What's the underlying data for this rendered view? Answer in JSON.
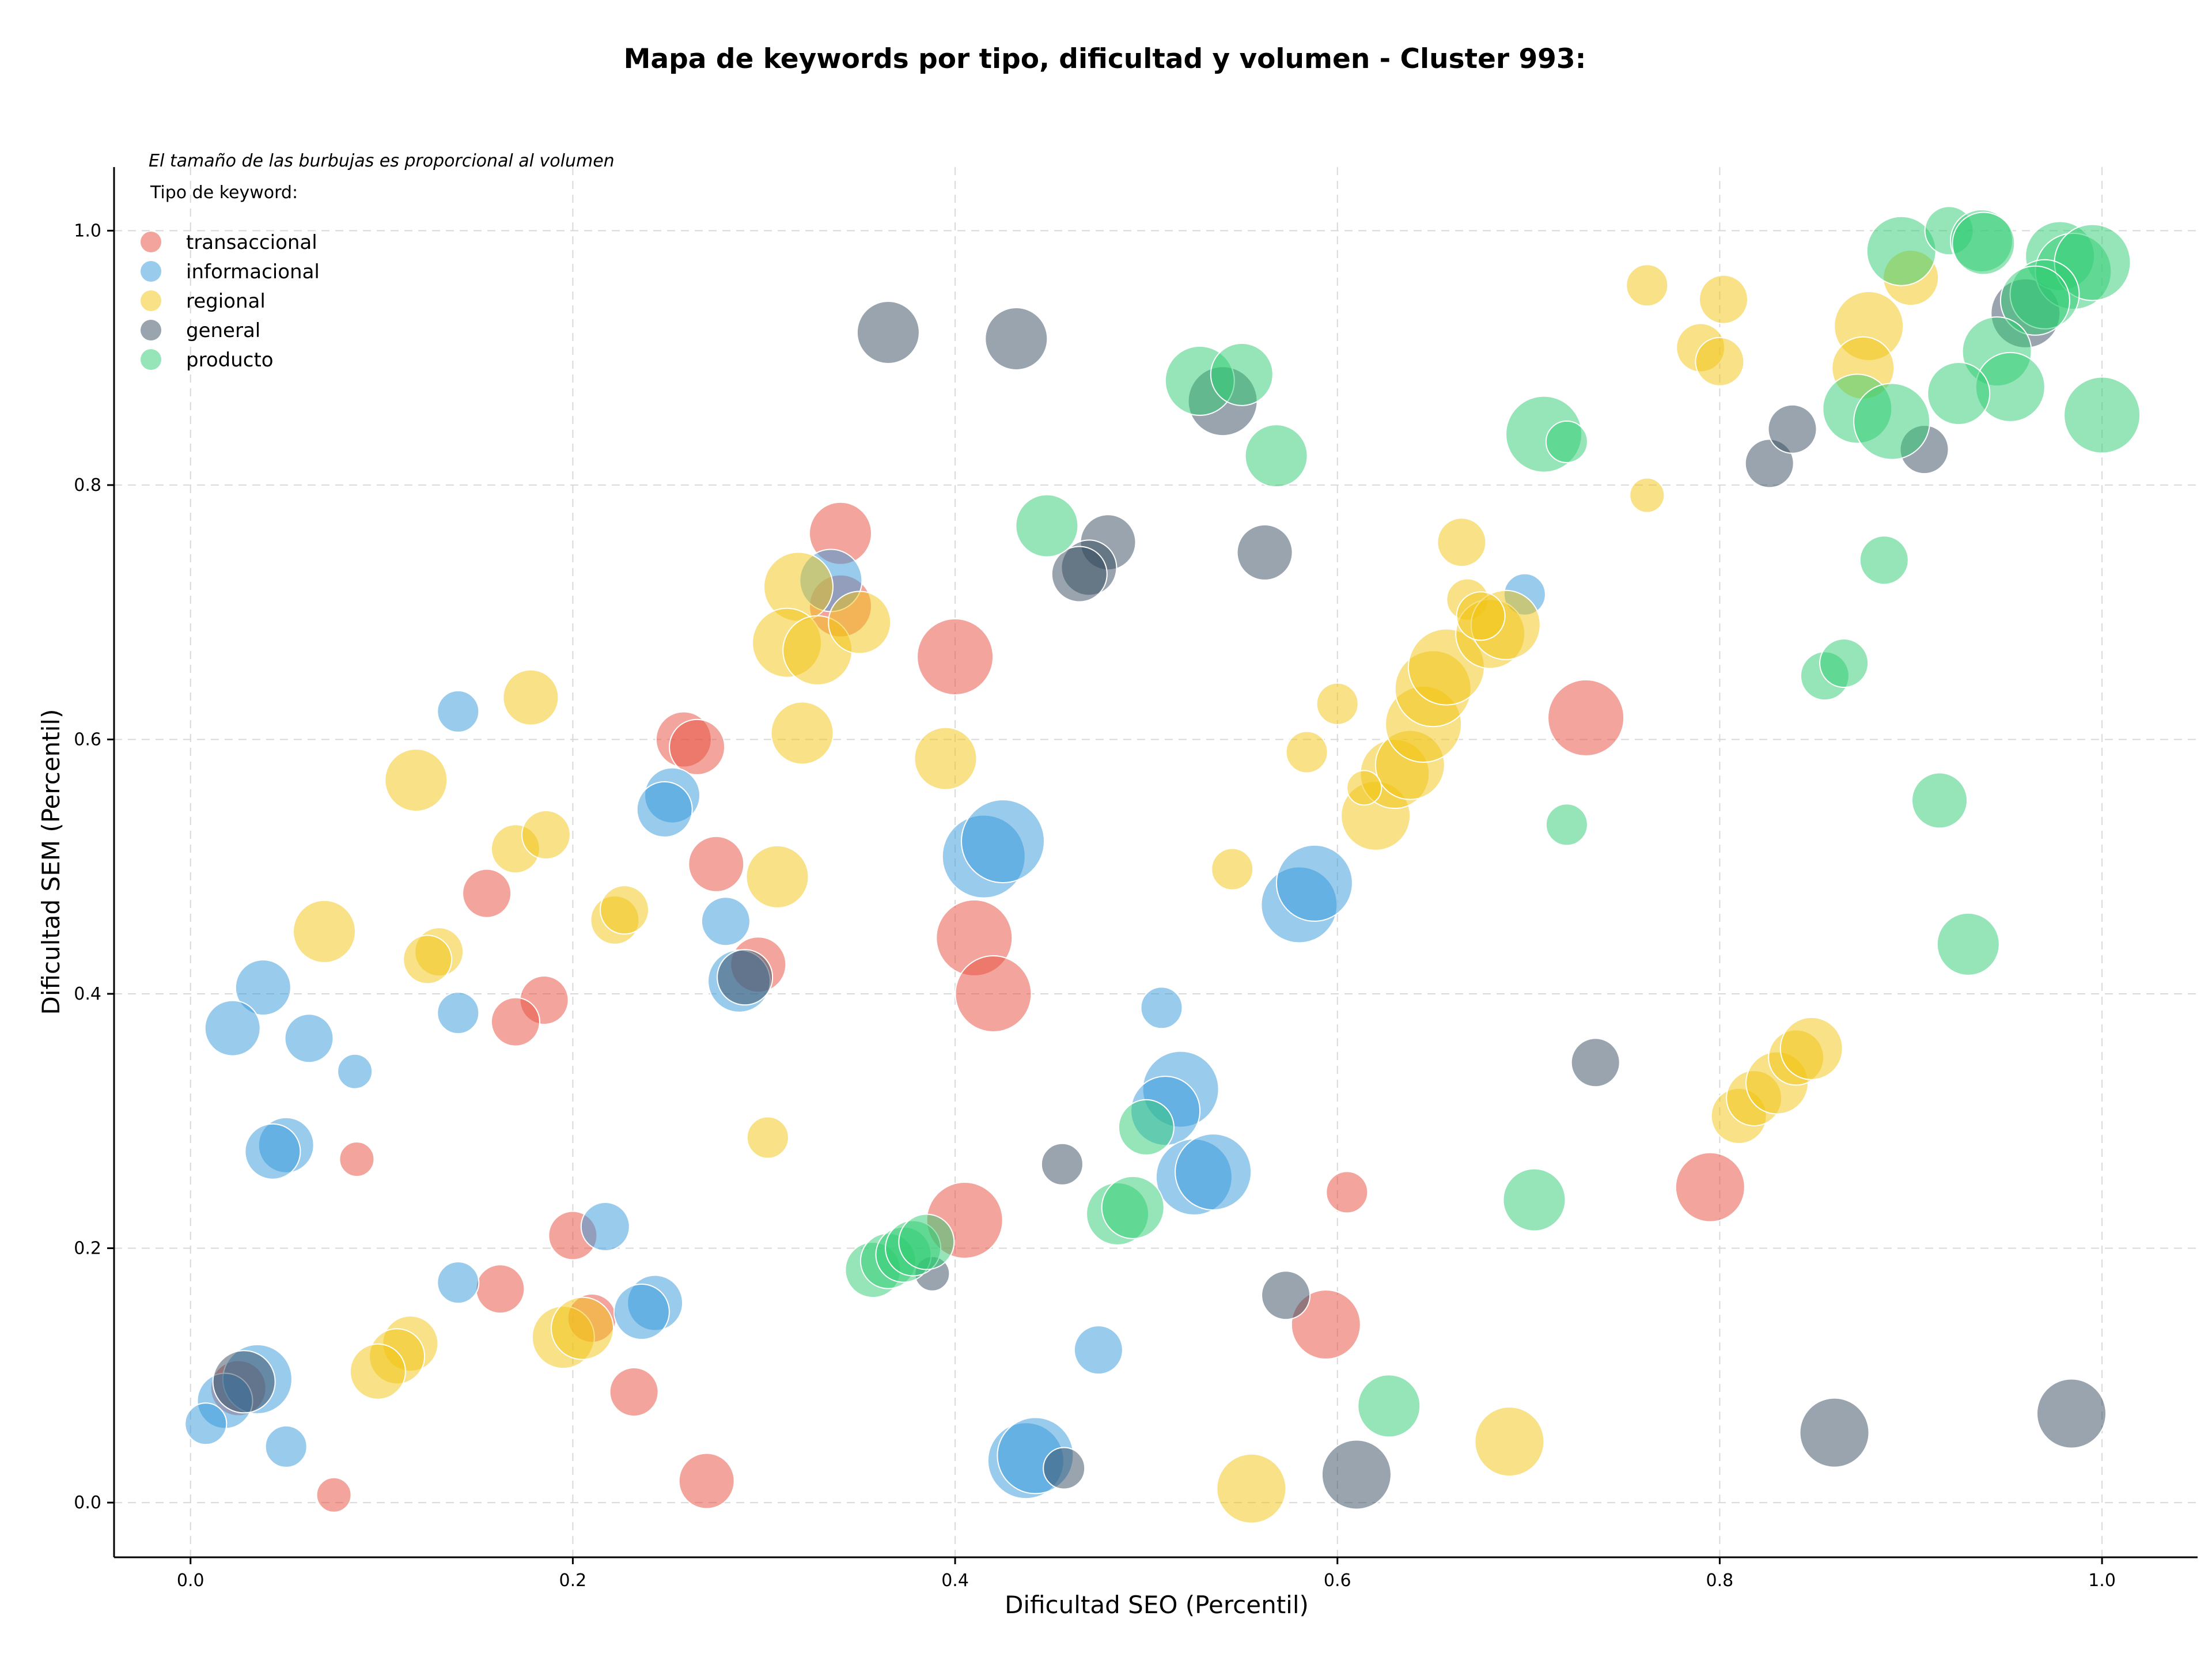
{
  "chart_data": {
    "type": "scatter",
    "title": "Mapa de keywords por tipo, dificultad y volumen - Cluster 993:",
    "xlabel": "Dificultad SEO (Percentil)",
    "ylabel": "Dificultad SEM (Percentil)",
    "xlim": [
      -0.04,
      1.05
    ],
    "ylim": [
      -0.043,
      1.05
    ],
    "xticks": [
      "0.0",
      "0.2",
      "0.4",
      "0.6",
      "0.8",
      "1.0"
    ],
    "yticks": [
      "0.0",
      "0.2",
      "0.4",
      "0.6",
      "0.8",
      "1.0"
    ],
    "grid": true,
    "annotation": "El tamaño de las burbujas es proporcional al volumen",
    "legend": {
      "title": "Tipo de keyword:",
      "placement": "top-left"
    },
    "series": [
      {
        "name": "transaccional",
        "color": "#e74c3c",
        "points": [
          [
            0.34,
            0.762,
            3
          ],
          [
            0.4,
            0.665,
            4
          ],
          [
            0.258,
            0.6,
            2.5
          ],
          [
            0.265,
            0.594,
            2.5
          ],
          [
            0.275,
            0.502,
            2.5
          ],
          [
            0.155,
            0.479,
            2
          ],
          [
            0.185,
            0.395,
            2
          ],
          [
            0.17,
            0.378,
            2
          ],
          [
            0.41,
            0.444,
            4
          ],
          [
            0.42,
            0.4,
            4
          ],
          [
            0.297,
            0.423,
            2.5
          ],
          [
            0.34,
            0.705,
            3
          ],
          [
            0.087,
            0.27,
            1
          ],
          [
            0.2,
            0.21,
            2
          ],
          [
            0.21,
            0.145,
            2
          ],
          [
            0.162,
            0.168,
            2
          ],
          [
            0.232,
            0.087,
            2
          ],
          [
            0.27,
            0.017,
            2.5
          ],
          [
            0.075,
            0.006,
            1
          ],
          [
            0.025,
            0.09,
            2.5
          ],
          [
            0.405,
            0.222,
            4
          ],
          [
            0.73,
            0.617,
            4
          ],
          [
            0.605,
            0.244,
            1.5
          ],
          [
            0.594,
            0.14,
            3.5
          ],
          [
            0.795,
            0.248,
            3.5
          ]
        ]
      },
      {
        "name": "informacional",
        "color": "#3498db",
        "points": [
          [
            0.335,
            0.725,
            3
          ],
          [
            0.14,
            0.622,
            1.5
          ],
          [
            0.252,
            0.556,
            2.5
          ],
          [
            0.248,
            0.545,
            2.5
          ],
          [
            0.28,
            0.457,
            2
          ],
          [
            0.287,
            0.41,
            3
          ],
          [
            0.038,
            0.405,
            2.5
          ],
          [
            0.022,
            0.373,
            2.5
          ],
          [
            0.062,
            0.365,
            2
          ],
          [
            0.14,
            0.385,
            1.5
          ],
          [
            0.086,
            0.339,
            1
          ],
          [
            0.05,
            0.281,
            2.5
          ],
          [
            0.043,
            0.276,
            2.5
          ],
          [
            0.217,
            0.217,
            2
          ],
          [
            0.14,
            0.173,
            1.5
          ],
          [
            0.243,
            0.157,
            2.5
          ],
          [
            0.236,
            0.15,
            2.5
          ],
          [
            0.035,
            0.097,
            3.5
          ],
          [
            0.018,
            0.08,
            2.5
          ],
          [
            0.008,
            0.062,
            1.5
          ],
          [
            0.05,
            0.044,
            1.5
          ],
          [
            0.415,
            0.508,
            4.5
          ],
          [
            0.425,
            0.52,
            4.5
          ],
          [
            0.508,
            0.389,
            1.5
          ],
          [
            0.518,
            0.325,
            4
          ],
          [
            0.51,
            0.308,
            3.5
          ],
          [
            0.525,
            0.256,
            4
          ],
          [
            0.535,
            0.26,
            4
          ],
          [
            0.58,
            0.47,
            4
          ],
          [
            0.588,
            0.487,
            4
          ],
          [
            0.475,
            0.12,
            2
          ],
          [
            0.437,
            0.033,
            4
          ],
          [
            0.442,
            0.037,
            4
          ],
          [
            0.698,
            0.714,
            1.5
          ]
        ]
      },
      {
        "name": "regional",
        "color": "#f1c40f",
        "points": [
          [
            0.318,
            0.72,
            3.5
          ],
          [
            0.312,
            0.676,
            3.5
          ],
          [
            0.328,
            0.67,
            3.5
          ],
          [
            0.35,
            0.692,
            3
          ],
          [
            0.32,
            0.605,
            3
          ],
          [
            0.395,
            0.585,
            3
          ],
          [
            0.178,
            0.633,
            2.5
          ],
          [
            0.118,
            0.568,
            3
          ],
          [
            0.17,
            0.514,
            2
          ],
          [
            0.186,
            0.525,
            2
          ],
          [
            0.307,
            0.492,
            3
          ],
          [
            0.07,
            0.449,
            3
          ],
          [
            0.222,
            0.458,
            2
          ],
          [
            0.227,
            0.466,
            2
          ],
          [
            0.13,
            0.433,
            2
          ],
          [
            0.124,
            0.427,
            2
          ],
          [
            0.302,
            0.287,
            1.5
          ],
          [
            0.115,
            0.125,
            2.5
          ],
          [
            0.108,
            0.115,
            2.5
          ],
          [
            0.098,
            0.103,
            2.5
          ],
          [
            0.195,
            0.13,
            3
          ],
          [
            0.205,
            0.137,
            3
          ],
          [
            0.555,
            0.011,
            3.5
          ],
          [
            0.69,
            0.048,
            3.5
          ],
          [
            0.545,
            0.498,
            1.5
          ],
          [
            0.584,
            0.59,
            1.5
          ],
          [
            0.6,
            0.628,
            1.5
          ],
          [
            0.62,
            0.54,
            3.5
          ],
          [
            0.63,
            0.573,
            3.5
          ],
          [
            0.638,
            0.58,
            3.5
          ],
          [
            0.645,
            0.612,
            4
          ],
          [
            0.65,
            0.64,
            4
          ],
          [
            0.657,
            0.657,
            4
          ],
          [
            0.614,
            0.562,
            1
          ],
          [
            0.665,
            0.755,
            2
          ],
          [
            0.668,
            0.71,
            1.5
          ],
          [
            0.68,
            0.683,
            3.5
          ],
          [
            0.688,
            0.69,
            3.5
          ],
          [
            0.675,
            0.697,
            2
          ],
          [
            0.762,
            0.957,
            1.5
          ],
          [
            0.79,
            0.908,
            2
          ],
          [
            0.8,
            0.897,
            2
          ],
          [
            0.802,
            0.946,
            2
          ],
          [
            0.762,
            0.792,
            1
          ],
          [
            0.878,
            0.925,
            3.5
          ],
          [
            0.875,
            0.892,
            3
          ],
          [
            0.9,
            0.963,
            2.5
          ],
          [
            0.81,
            0.304,
            2.5
          ],
          [
            0.818,
            0.318,
            2.5
          ],
          [
            0.83,
            0.33,
            3
          ],
          [
            0.84,
            0.35,
            2.5
          ],
          [
            0.848,
            0.357,
            3
          ]
        ]
      },
      {
        "name": "general",
        "color": "#34495e",
        "points": [
          [
            0.365,
            0.92,
            3
          ],
          [
            0.432,
            0.915,
            3
          ],
          [
            0.54,
            0.866,
            3.5
          ],
          [
            0.48,
            0.755,
            2.5
          ],
          [
            0.47,
            0.735,
            2.5
          ],
          [
            0.465,
            0.73,
            2.5
          ],
          [
            0.562,
            0.747,
            2.5
          ],
          [
            0.29,
            0.413,
            2.5
          ],
          [
            0.028,
            0.095,
            3
          ],
          [
            0.456,
            0.266,
            1.5
          ],
          [
            0.388,
            0.18,
            1
          ],
          [
            0.573,
            0.163,
            2
          ],
          [
            0.61,
            0.022,
            3.5
          ],
          [
            0.457,
            0.027,
            1.5
          ],
          [
            0.735,
            0.346,
            2
          ],
          [
            0.86,
            0.055,
            3.5
          ],
          [
            0.984,
            0.07,
            3.5
          ],
          [
            0.826,
            0.817,
            2
          ],
          [
            0.838,
            0.844,
            2
          ],
          [
            0.907,
            0.828,
            2
          ],
          [
            0.96,
            0.935,
            3.5
          ]
        ]
      },
      {
        "name": "producto",
        "color": "#2ecc71",
        "points": [
          [
            0.528,
            0.882,
            3.5
          ],
          [
            0.55,
            0.887,
            3
          ],
          [
            0.568,
            0.823,
            3
          ],
          [
            0.448,
            0.768,
            3
          ],
          [
            0.708,
            0.84,
            4
          ],
          [
            0.72,
            0.834,
            1.5
          ],
          [
            0.72,
            0.533,
            1.5
          ],
          [
            0.886,
            0.741,
            2
          ],
          [
            0.855,
            0.65,
            2
          ],
          [
            0.865,
            0.66,
            2
          ],
          [
            0.915,
            0.552,
            2.5
          ],
          [
            0.93,
            0.439,
            3
          ],
          [
            0.703,
            0.238,
            3
          ],
          [
            0.627,
            0.076,
            3
          ],
          [
            0.5,
            0.295,
            2.5
          ],
          [
            0.485,
            0.227,
            3
          ],
          [
            0.493,
            0.232,
            3
          ],
          [
            0.357,
            0.183,
            2.5
          ],
          [
            0.365,
            0.19,
            2.5
          ],
          [
            0.373,
            0.195,
            2.5
          ],
          [
            0.378,
            0.2,
            2.5
          ],
          [
            0.385,
            0.205,
            2.5
          ],
          [
            0.895,
            0.984,
            3.5
          ],
          [
            0.92,
            1.0,
            2
          ],
          [
            0.937,
            0.992,
            3
          ],
          [
            0.938,
            0.99,
            3
          ],
          [
            0.978,
            0.98,
            3.5
          ],
          [
            0.985,
            0.968,
            4
          ],
          [
            0.995,
            0.975,
            4
          ],
          [
            0.97,
            0.95,
            3.5
          ],
          [
            0.965,
            0.945,
            3.5
          ],
          [
            0.945,
            0.905,
            3.5
          ],
          [
            0.952,
            0.877,
            3.5
          ],
          [
            0.925,
            0.872,
            3
          ],
          [
            0.872,
            0.86,
            3.5
          ],
          [
            0.89,
            0.85,
            4
          ],
          [
            1.0,
            0.855,
            4
          ]
        ]
      }
    ]
  }
}
